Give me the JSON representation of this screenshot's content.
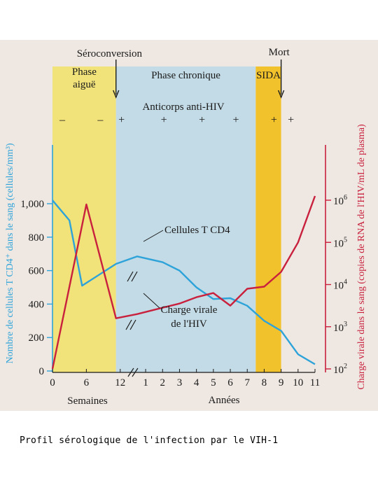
{
  "caption": "Profil sérologique de l'infection par le VIH-1",
  "colors": {
    "page_bg": "#efe8e2",
    "phase_acute": "#f1e27a",
    "phase_chronic": "#c3dbe6",
    "phase_aids": "#f2c22c",
    "cd4_line": "#2ea3d9",
    "viral_line": "#c8203d",
    "left_axis": "#2ea3d9",
    "right_axis": "#c8203d"
  },
  "chart_data": {
    "type": "line",
    "title": "",
    "top_labels": {
      "seroconversion": "Séroconversion",
      "death": "Mort"
    },
    "phases": [
      {
        "name": "Phase\naiguë",
        "from": 0,
        "to": 7.5
      },
      {
        "name": "Phase chronique",
        "from": 7.5,
        "to": 24
      },
      {
        "name": "SIDA",
        "from": 24,
        "to": 27
      }
    ],
    "antibody_label": "Anticorps anti-HIV",
    "antibody_markers": [
      {
        "x": 0,
        "sign": "–"
      },
      {
        "x": 4.5,
        "sign": "–"
      },
      {
        "x": 7,
        "sign": "+"
      },
      {
        "x": 12,
        "sign": "+"
      },
      {
        "x": 16.5,
        "sign": "+"
      },
      {
        "x": 20.5,
        "sign": "+"
      },
      {
        "x": 25,
        "sign": "+"
      },
      {
        "x": 27,
        "sign": "+"
      }
    ],
    "x_ticks": [
      {
        "x": 0,
        "label": "0"
      },
      {
        "x": 4,
        "label": "6"
      },
      {
        "x": 8,
        "label": "12"
      },
      {
        "x": 11,
        "label": "1"
      },
      {
        "x": 13,
        "label": "2"
      },
      {
        "x": 15,
        "label": "3"
      },
      {
        "x": 17,
        "label": "4"
      },
      {
        "x": 19,
        "label": "5"
      },
      {
        "x": 21,
        "label": "6"
      },
      {
        "x": 23,
        "label": "7"
      },
      {
        "x": 25,
        "label": "8"
      },
      {
        "x": 27,
        "label": "9"
      },
      {
        "x": 29,
        "label": "10"
      },
      {
        "x": 31,
        "label": "11"
      }
    ],
    "x_range": [
      0,
      31
    ],
    "x_breaks": [
      9.5
    ],
    "xlabel_weeks": "Semaines",
    "xlabel_years": "Années",
    "ylabel_left": "Nombre de cellules T CD4⁺ dans le sang (cellules/mm³)",
    "ylim_left": [
      0,
      1100
    ],
    "yticks_left": [
      {
        "v": 0,
        "label": "0"
      },
      {
        "v": 200,
        "label": "200"
      },
      {
        "v": 400,
        "label": "400"
      },
      {
        "v": 600,
        "label": "600"
      },
      {
        "v": 800,
        "label": "800"
      },
      {
        "v": 1000,
        "label": "1,000"
      }
    ],
    "ylabel_right": "Charge virale dans le sang (copies de RNA de l'HIV/mL de plasma)",
    "ylim_right_log10": [
      2,
      6.4
    ],
    "yticks_right": [
      {
        "v": 2,
        "base": "10",
        "exp": "2"
      },
      {
        "v": 3,
        "base": "10",
        "exp": "3"
      },
      {
        "v": 4,
        "base": "10",
        "exp": "4"
      },
      {
        "v": 5,
        "base": "10",
        "exp": "5"
      },
      {
        "v": 6,
        "base": "10",
        "exp": "6"
      }
    ],
    "series": [
      {
        "name": "Cellules T CD4",
        "axis": "left",
        "x": [
          0,
          2,
          3.5,
          7.5,
          10,
          13,
          15,
          17,
          19,
          21,
          23,
          25,
          27,
          29,
          31
        ],
        "values": [
          1020,
          900,
          510,
          640,
          685,
          650,
          600,
          500,
          430,
          435,
          390,
          300,
          240,
          100,
          40
        ]
      },
      {
        "name": "Charge virale\nde l'HIV",
        "axis": "right",
        "x": [
          0,
          4,
          7.5,
          10,
          13,
          15,
          17,
          19,
          21,
          23,
          25,
          27,
          29,
          31
        ],
        "values": [
          2.0,
          5.9,
          3.2,
          3.3,
          3.45,
          3.55,
          3.7,
          3.8,
          3.5,
          3.9,
          3.95,
          4.3,
          5.0,
          6.1
        ]
      }
    ]
  }
}
